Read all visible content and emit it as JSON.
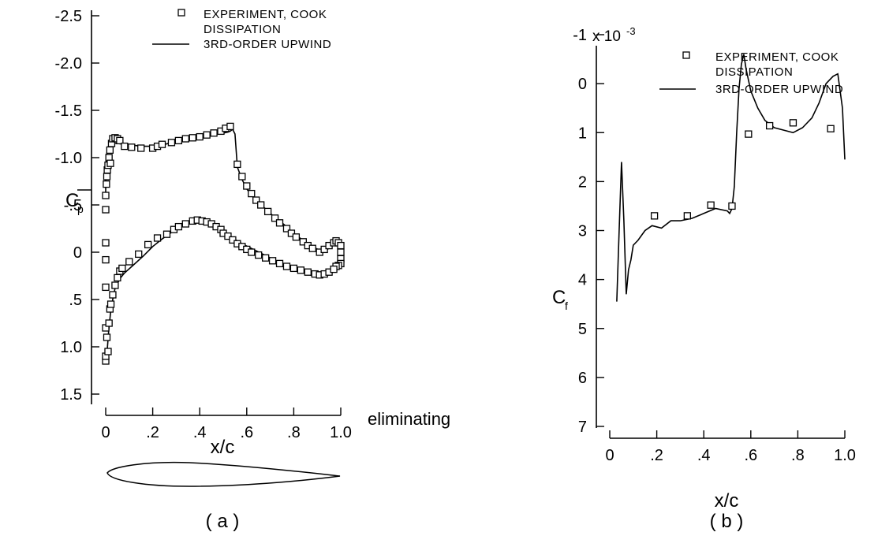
{
  "chart_data": [
    {
      "panel": "a",
      "type": "scatter+line",
      "caption": "( a )",
      "xlabel": "x/c",
      "ylabel": "C",
      "ylabel_sub": "p",
      "xlim": [
        0,
        1.0
      ],
      "ylim": [
        -2.5,
        1.5
      ],
      "y_inverted": true,
      "xticks": [
        "0",
        ".2",
        ".4",
        ".6",
        ".8",
        "1.0"
      ],
      "yticks": [
        "-2.5",
        "-2.0",
        "-1.5",
        "-1.0",
        "-.5",
        "0",
        ".5",
        "1.0",
        "1.5"
      ],
      "legend_placement": "top-right",
      "stray_text": "eliminating",
      "series": [
        {
          "name": "EXPERIMENT, COOK",
          "kind": "markers",
          "marker": "square",
          "points": [
            [
              0.0,
              1.15
            ],
            [
              0.0,
              1.1
            ],
            [
              0.0,
              0.8
            ],
            [
              0.0,
              0.37
            ],
            [
              0.0,
              0.08
            ],
            [
              0.0,
              -0.1
            ],
            [
              0.0,
              -0.45
            ],
            [
              0.0,
              -0.6
            ],
            [
              0.003,
              -0.72
            ],
            [
              0.005,
              -0.8
            ],
            [
              0.007,
              -0.87
            ],
            [
              0.01,
              -0.92
            ],
            [
              0.014,
              -1.0
            ],
            [
              0.018,
              -1.08
            ],
            [
              0.02,
              -0.94
            ],
            [
              0.025,
              -1.15
            ],
            [
              0.03,
              -1.2
            ],
            [
              0.04,
              -1.21
            ],
            [
              0.05,
              -1.2
            ],
            [
              0.06,
              -1.18
            ],
            [
              0.08,
              -1.12
            ],
            [
              0.11,
              -1.11
            ],
            [
              0.15,
              -1.1
            ],
            [
              0.2,
              -1.1
            ],
            [
              0.22,
              -1.12
            ],
            [
              0.24,
              -1.14
            ],
            [
              0.28,
              -1.16
            ],
            [
              0.31,
              -1.18
            ],
            [
              0.34,
              -1.2
            ],
            [
              0.37,
              -1.21
            ],
            [
              0.4,
              -1.22
            ],
            [
              0.43,
              -1.24
            ],
            [
              0.46,
              -1.26
            ],
            [
              0.49,
              -1.28
            ],
            [
              0.51,
              -1.31
            ],
            [
              0.53,
              -1.33
            ],
            [
              0.56,
              -0.93
            ],
            [
              0.58,
              -0.8
            ],
            [
              0.6,
              -0.7
            ],
            [
              0.62,
              -0.62
            ],
            [
              0.64,
              -0.55
            ],
            [
              0.66,
              -0.5
            ],
            [
              0.69,
              -0.43
            ],
            [
              0.72,
              -0.36
            ],
            [
              0.74,
              -0.31
            ],
            [
              0.77,
              -0.25
            ],
            [
              0.79,
              -0.2
            ],
            [
              0.81,
              -0.16
            ],
            [
              0.84,
              -0.11
            ],
            [
              0.86,
              -0.07
            ],
            [
              0.88,
              -0.04
            ],
            [
              0.91,
              0.0
            ],
            [
              0.93,
              -0.03
            ],
            [
              0.95,
              -0.07
            ],
            [
              0.97,
              -0.1
            ],
            [
              0.98,
              -0.12
            ],
            [
              0.99,
              -0.1
            ],
            [
              1.0,
              -0.07
            ],
            [
              1.0,
              0.0
            ],
            [
              1.0,
              0.07
            ],
            [
              1.0,
              0.12
            ],
            [
              0.99,
              0.14
            ],
            [
              0.98,
              0.15
            ],
            [
              0.005,
              0.9
            ],
            [
              0.01,
              1.05
            ],
            [
              0.014,
              0.75
            ],
            [
              0.018,
              0.6
            ],
            [
              0.022,
              0.55
            ],
            [
              0.03,
              0.45
            ],
            [
              0.04,
              0.35
            ],
            [
              0.05,
              0.27
            ],
            [
              0.06,
              0.2
            ],
            [
              0.07,
              0.17
            ],
            [
              0.1,
              0.1
            ],
            [
              0.14,
              0.02
            ],
            [
              0.18,
              -0.08
            ],
            [
              0.22,
              -0.15
            ],
            [
              0.26,
              -0.19
            ],
            [
              0.29,
              -0.24
            ],
            [
              0.31,
              -0.27
            ],
            [
              0.34,
              -0.3
            ],
            [
              0.37,
              -0.33
            ],
            [
              0.39,
              -0.34
            ],
            [
              0.41,
              -0.33
            ],
            [
              0.43,
              -0.32
            ],
            [
              0.45,
              -0.3
            ],
            [
              0.47,
              -0.27
            ],
            [
              0.49,
              -0.24
            ],
            [
              0.5,
              -0.2
            ],
            [
              0.52,
              -0.17
            ],
            [
              0.54,
              -0.13
            ],
            [
              0.56,
              -0.09
            ],
            [
              0.58,
              -0.06
            ],
            [
              0.6,
              -0.03
            ],
            [
              0.62,
              0.0
            ],
            [
              0.65,
              0.03
            ],
            [
              0.68,
              0.06
            ],
            [
              0.71,
              0.09
            ],
            [
              0.74,
              0.12
            ],
            [
              0.77,
              0.15
            ],
            [
              0.8,
              0.17
            ],
            [
              0.83,
              0.19
            ],
            [
              0.86,
              0.21
            ],
            [
              0.89,
              0.23
            ],
            [
              0.91,
              0.24
            ],
            [
              0.93,
              0.23
            ],
            [
              0.95,
              0.21
            ],
            [
              0.97,
              0.18
            ]
          ]
        },
        {
          "name": "DISSIPATION",
          "kind": "label-only"
        },
        {
          "name": "3RD-ORDER UPWIND",
          "kind": "line",
          "x": [
            0.0,
            0.0,
            0.005,
            0.012,
            0.02,
            0.03,
            0.05,
            0.08,
            0.12,
            0.16,
            0.2,
            0.25,
            0.3,
            0.35,
            0.4,
            0.45,
            0.5,
            0.52,
            0.53,
            0.54,
            0.55,
            0.56,
            0.58,
            0.6,
            0.62,
            0.65,
            0.68,
            0.7,
            0.73,
            0.76,
            0.79,
            0.82,
            0.85,
            0.88,
            0.91,
            0.94,
            0.96,
            0.98,
            1.0,
            1.0,
            0.98,
            0.96,
            0.94,
            0.92,
            0.9,
            0.88,
            0.85,
            0.82,
            0.78,
            0.74,
            0.7,
            0.66,
            0.62,
            0.58,
            0.54,
            0.5,
            0.46,
            0.42,
            0.4,
            0.38,
            0.35,
            0.32,
            0.28,
            0.24,
            0.2,
            0.16,
            0.12,
            0.08,
            0.06,
            0.04,
            0.03,
            0.02,
            0.012,
            0.006,
            0.002,
            0.0
          ],
          "y": [
            -0.6,
            -0.9,
            -1.05,
            -1.12,
            -1.15,
            -1.15,
            -1.15,
            -1.14,
            -1.13,
            -1.12,
            -1.12,
            -1.14,
            -1.17,
            -1.2,
            -1.22,
            -1.24,
            -1.26,
            -1.27,
            -1.28,
            -1.3,
            -1.25,
            -0.9,
            -0.77,
            -0.67,
            -0.6,
            -0.52,
            -0.46,
            -0.41,
            -0.35,
            -0.29,
            -0.22,
            -0.16,
            -0.11,
            -0.06,
            -0.02,
            -0.02,
            -0.07,
            -0.11,
            -0.13,
            0.12,
            0.17,
            0.22,
            0.25,
            0.26,
            0.26,
            0.25,
            0.22,
            0.19,
            0.15,
            0.11,
            0.06,
            0.01,
            -0.04,
            -0.09,
            -0.15,
            -0.21,
            -0.27,
            -0.31,
            -0.33,
            -0.33,
            -0.31,
            -0.27,
            -0.21,
            -0.14,
            -0.06,
            0.04,
            0.13,
            0.22,
            0.28,
            0.38,
            0.5,
            0.65,
            0.85,
            1.05,
            1.13,
            1.1
          ]
        }
      ]
    },
    {
      "panel": "b",
      "type": "scatter+line",
      "caption": "( b )",
      "xlabel": "x/c",
      "ylabel": "C",
      "ylabel_sub": "f",
      "xlim": [
        0,
        1.0
      ],
      "ylim": [
        -1,
        7
      ],
      "scale_label": "x 10",
      "scale_exponent": "-3",
      "xticks": [
        "0",
        ".2",
        ".4",
        ".6",
        ".8",
        "1.0"
      ],
      "yticks": [
        "-1",
        "0",
        "1",
        "2",
        "3",
        "4",
        "5",
        "6",
        "7"
      ],
      "legend_placement": "top-right",
      "series": [
        {
          "name": "EXPERIMENT, COOK",
          "kind": "markers",
          "marker": "square",
          "points": [
            [
              0.19,
              2.7
            ],
            [
              0.33,
              2.7
            ],
            [
              0.43,
              2.48
            ],
            [
              0.52,
              2.5
            ],
            [
              0.59,
              1.03
            ],
            [
              0.68,
              0.86
            ],
            [
              0.78,
              0.8
            ],
            [
              0.94,
              0.92
            ]
          ]
        },
        {
          "name": "DISSIPATION",
          "kind": "label-only"
        },
        {
          "name": "3RD-ORDER UPWIND",
          "kind": "line",
          "x": [
            0.03,
            0.04,
            0.05,
            0.06,
            0.07,
            0.08,
            0.09,
            0.1,
            0.12,
            0.15,
            0.18,
            0.22,
            0.26,
            0.3,
            0.35,
            0.4,
            0.45,
            0.5,
            0.51,
            0.52,
            0.53,
            0.54,
            0.55,
            0.56,
            0.57,
            0.58,
            0.6,
            0.63,
            0.66,
            0.7,
            0.74,
            0.78,
            0.82,
            0.86,
            0.89,
            0.92,
            0.95,
            0.97,
            0.99,
            1.0
          ],
          "y": [
            4.45,
            3.0,
            1.6,
            2.8,
            4.3,
            3.8,
            3.6,
            3.3,
            3.2,
            3.0,
            2.9,
            2.95,
            2.8,
            2.8,
            2.75,
            2.65,
            2.55,
            2.6,
            2.65,
            2.55,
            2.1,
            1.0,
            0.1,
            -0.4,
            -0.6,
            -0.3,
            0.15,
            0.5,
            0.75,
            0.9,
            0.95,
            1.0,
            0.9,
            0.7,
            0.4,
            0.0,
            -0.15,
            -0.2,
            0.5,
            1.55
          ]
        }
      ]
    }
  ]
}
